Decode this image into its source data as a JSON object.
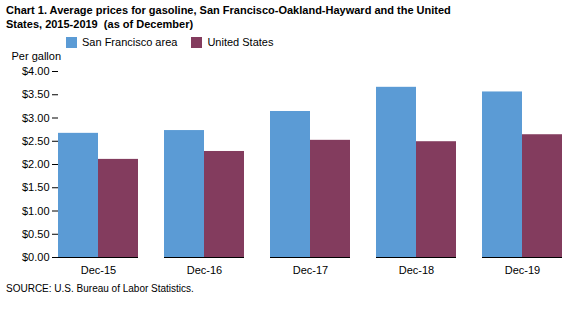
{
  "chart_data": {
    "type": "bar",
    "title": "Chart 1. Average prices for gasoline, San Francisco-Oakland-Hayward and the United\nStates, 2015-2019  (as of December)",
    "ylabel": "Per gallon",
    "source": "SOURCE: U.S. Bureau of Labor Statistics.",
    "categories": [
      "Dec-15",
      "Dec-16",
      "Dec-17",
      "Dec-18",
      "Dec-19"
    ],
    "series": [
      {
        "name": "San Francisco area",
        "color": "#5B9BD5",
        "values": [
          2.67,
          2.73,
          3.14,
          3.66,
          3.56
        ]
      },
      {
        "name": "United States",
        "color": "#833C5E",
        "values": [
          2.11,
          2.28,
          2.52,
          2.49,
          2.64
        ]
      }
    ],
    "ylim": [
      0,
      4.0
    ],
    "yticks": [
      {
        "value": 0.0,
        "label": "$0.00"
      },
      {
        "value": 0.5,
        "label": "$0.50"
      },
      {
        "value": 1.0,
        "label": "$1.00"
      },
      {
        "value": 1.5,
        "label": "$1.50"
      },
      {
        "value": 2.0,
        "label": "$2.00"
      },
      {
        "value": 2.5,
        "label": "$2.50"
      },
      {
        "value": 3.0,
        "label": "$3.00"
      },
      {
        "value": 3.5,
        "label": "$3.50"
      },
      {
        "value": 4.0,
        "label": "$4.00"
      }
    ],
    "grid": false,
    "legend": "upper left"
  }
}
